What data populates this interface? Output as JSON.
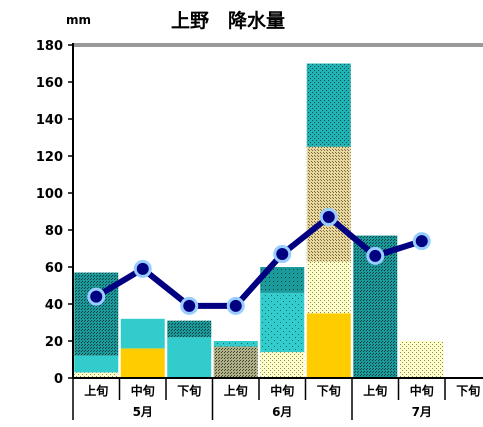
{
  "chart_data": {
    "type": "bar",
    "title": "上野　降水量",
    "unit_label": "mm",
    "ylim": [
      0,
      180
    ],
    "yticks": [
      0,
      20,
      40,
      60,
      80,
      100,
      120,
      140,
      160,
      180
    ],
    "categories": [
      "上旬",
      "中旬",
      "下旬",
      "上旬",
      "中旬",
      "下旬",
      "上旬",
      "中旬",
      "下旬"
    ],
    "month_labels": [
      "5月",
      "6月",
      "7月"
    ],
    "bar_series": [
      {
        "pattern": "light-dotted",
        "values": [
          3,
          0,
          0,
          0,
          0,
          0,
          0,
          0,
          0
        ]
      },
      {
        "pattern": "yellow",
        "values": [
          0,
          16,
          0,
          0,
          0,
          35,
          0,
          0,
          0
        ]
      },
      {
        "pattern": "light-dotted",
        "values": [
          0,
          0,
          0,
          0,
          14,
          28,
          0,
          20,
          0
        ]
      },
      {
        "pattern": "teal",
        "values": [
          9,
          16,
          22,
          0,
          0,
          0,
          0,
          0,
          0
        ]
      },
      {
        "pattern": "teal-dense-dotted",
        "values": [
          45,
          0,
          9,
          0,
          0,
          0,
          77,
          0,
          0
        ]
      },
      {
        "pattern": "olive-dotted",
        "values": [
          0,
          0,
          0,
          17,
          0,
          0,
          0,
          0,
          0
        ]
      },
      {
        "pattern": "teal-sparse-dotted",
        "values": [
          0,
          0,
          0,
          3,
          32,
          0,
          0,
          0,
          0
        ]
      },
      {
        "pattern": "teal-tip",
        "values": [
          0,
          0,
          0,
          0,
          14,
          0,
          0,
          0,
          0
        ]
      },
      {
        "pattern": "tan-dotted",
        "values": [
          0,
          0,
          0,
          0,
          0,
          62,
          0,
          0,
          0
        ]
      },
      {
        "pattern": "teal-dotted",
        "values": [
          0,
          0,
          0,
          0,
          0,
          45,
          0,
          0,
          0
        ]
      }
    ],
    "line_series": {
      "values": [
        44,
        59,
        39,
        39,
        67,
        87,
        66,
        74,
        null
      ]
    },
    "colors": {
      "teal": "#33cccc",
      "yellow": "#ffcc00",
      "line": "#000080",
      "marker": "#99ccff",
      "light": "#ffffcc",
      "tan": "#e8d8a0",
      "olive": "#a0a070",
      "axis_top": "#999999"
    }
  }
}
